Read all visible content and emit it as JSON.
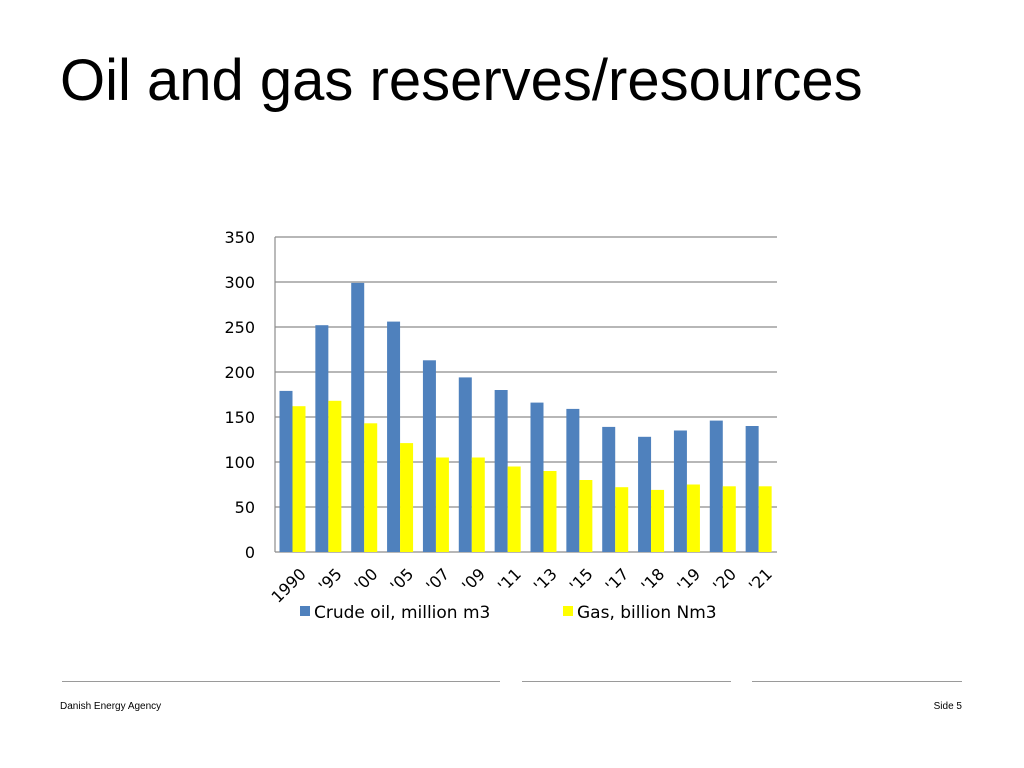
{
  "slide": {
    "title": "Oil and gas reserves/resources"
  },
  "chart_data": {
    "type": "bar",
    "categories": [
      "1990",
      "'95",
      "'00",
      "'05",
      "'07",
      "'09",
      "'11",
      "'13",
      "'15",
      "'17",
      "'18",
      "'19",
      "'20",
      "'21"
    ],
    "series": [
      {
        "name": "Crude oil, million m3",
        "color": "#4f81bd",
        "values": [
          179,
          252,
          299,
          256,
          213,
          194,
          180,
          166,
          159,
          139,
          128,
          135,
          146,
          140
        ]
      },
      {
        "name": "Gas, billion Nm3",
        "color": "#ffff00",
        "values": [
          162,
          168,
          143,
          121,
          105,
          105,
          95,
          90,
          80,
          72,
          69,
          75,
          73,
          73
        ]
      }
    ],
    "yticks": [
      "0",
      "50",
      "100",
      "150",
      "200",
      "250",
      "300",
      "350"
    ],
    "ylim": [
      0,
      350
    ],
    "grid": true,
    "legend_position": "bottom"
  },
  "footer": {
    "left_text": "Danish Energy Agency",
    "right_text": "Side 5"
  }
}
